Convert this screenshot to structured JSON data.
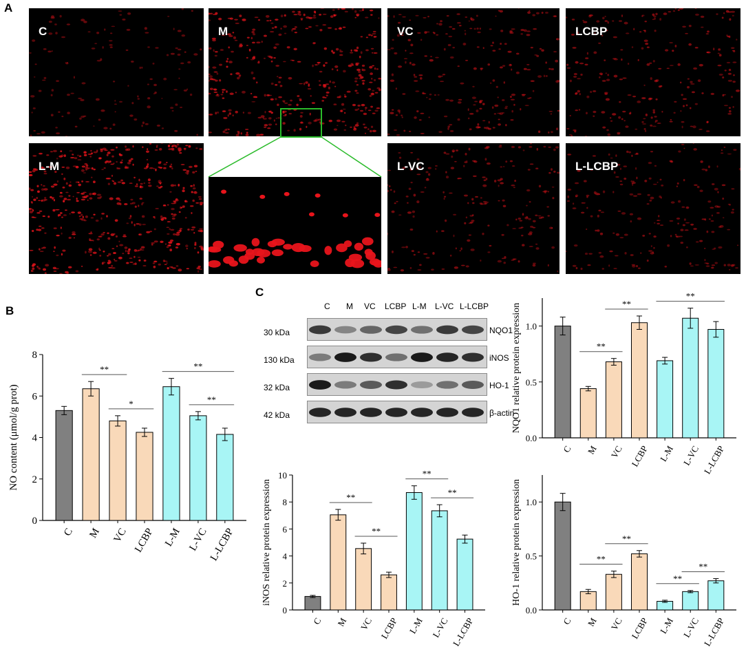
{
  "panel_letters": {
    "a": "A",
    "b": "B",
    "c": "C"
  },
  "micrographs": [
    {
      "label": "C",
      "density": 0.15
    },
    {
      "label": "M",
      "density": 0.7
    },
    {
      "label": "VC",
      "density": 0.35
    },
    {
      "label": "LCBP",
      "density": 0.35
    },
    {
      "label": "L-M",
      "density": 0.9
    },
    {
      "label": "",
      "density": 0
    },
    {
      "label": "L-VC",
      "density": 0.3
    },
    {
      "label": "L-LCBP",
      "density": 0.3
    }
  ],
  "colors": {
    "control": "#808080",
    "model_group": "#f9d9b9",
    "laser_group": "#a8f5f5",
    "stroke": "#000000",
    "zoom_box": "#2bbb2b",
    "fluorescence": "#e8141b"
  },
  "blot": {
    "lanes": [
      "C",
      "M",
      "VC",
      "LCBP",
      "L-M",
      "L-VC",
      "L-LCBP"
    ],
    "rows": [
      {
        "kda": "30 kDa",
        "protein": "NQO1"
      },
      {
        "kda": "130 kDa",
        "protein": "iNOS"
      },
      {
        "kda": "32 kDa",
        "protein": "HO-1"
      },
      {
        "kda": "42 kDa",
        "protein": "β-actin"
      }
    ]
  },
  "chart_data": [
    {
      "type": "bar",
      "panel": "B",
      "categories": [
        "C",
        "M",
        "VC",
        "LCBP",
        "L-M",
        "L-VC",
        "L-LCBP"
      ],
      "values": [
        5.3,
        6.35,
        4.8,
        4.25,
        6.45,
        5.05,
        4.15
      ],
      "errors": [
        0.2,
        0.35,
        0.25,
        0.2,
        0.4,
        0.2,
        0.3
      ],
      "ylabel": "NO content (μmol/g prot)",
      "ylim": [
        0,
        8
      ],
      "yticks": [
        "0",
        "2",
        "4",
        "6",
        "8"
      ],
      "significance": [
        {
          "from": 1,
          "to": 2,
          "label": "**"
        },
        {
          "from": 2,
          "to": 3,
          "label": "*"
        },
        {
          "from": 4,
          "to": 6,
          "label": "**"
        },
        {
          "from": 5,
          "to": 6,
          "label": "**"
        }
      ]
    },
    {
      "type": "bar",
      "panel": "NQO1",
      "categories": [
        "C",
        "M",
        "VC",
        "LCBP",
        "L-M",
        "L-VC",
        "L-LCBP"
      ],
      "values": [
        1.0,
        0.44,
        0.68,
        1.03,
        0.69,
        1.07,
        0.97
      ],
      "errors": [
        0.08,
        0.02,
        0.03,
        0.06,
        0.03,
        0.09,
        0.07
      ],
      "ylabel": "NQO1 relative protein expression",
      "ylim": [
        0,
        1.25
      ],
      "yticks": [
        "0.0",
        "0.5",
        "1.0"
      ],
      "significance": [
        {
          "from": 1,
          "to": 2,
          "label": "**"
        },
        {
          "from": 2,
          "to": 3,
          "label": "**"
        },
        {
          "from": 4,
          "to": 6,
          "label": "**"
        }
      ]
    },
    {
      "type": "bar",
      "panel": "iNOS",
      "categories": [
        "C",
        "M",
        "VC",
        "LCBP",
        "L-M",
        "L-VC",
        "L-LCBP"
      ],
      "values": [
        1.0,
        7.05,
        4.55,
        2.6,
        8.7,
        7.35,
        5.25
      ],
      "errors": [
        0.08,
        0.4,
        0.4,
        0.2,
        0.5,
        0.45,
        0.3
      ],
      "ylabel": "iNOS relative protein expression",
      "ylim": [
        0,
        10
      ],
      "yticks": [
        "0",
        "2",
        "4",
        "6",
        "8",
        "10"
      ],
      "significance": [
        {
          "from": 1,
          "to": 2,
          "label": "**"
        },
        {
          "from": 2,
          "to": 3,
          "label": "**"
        },
        {
          "from": 4,
          "to": 5,
          "label": "**"
        },
        {
          "from": 5,
          "to": 6,
          "label": "**"
        }
      ]
    },
    {
      "type": "bar",
      "panel": "HO-1",
      "categories": [
        "C",
        "M",
        "VC",
        "LCBP",
        "L-M",
        "L-VC",
        "L-LCBP"
      ],
      "values": [
        1.0,
        0.17,
        0.33,
        0.52,
        0.08,
        0.17,
        0.27
      ],
      "errors": [
        0.08,
        0.02,
        0.03,
        0.03,
        0.01,
        0.01,
        0.02
      ],
      "ylabel": "HO-1 relative protein expression",
      "ylim": [
        0,
        1.25
      ],
      "yticks": [
        "0.0",
        "0.5",
        "1.0"
      ],
      "significance": [
        {
          "from": 1,
          "to": 2,
          "label": "**"
        },
        {
          "from": 2,
          "to": 3,
          "label": "**"
        },
        {
          "from": 4,
          "to": 5,
          "label": "**"
        },
        {
          "from": 5,
          "to": 6,
          "label": "**"
        }
      ]
    }
  ]
}
